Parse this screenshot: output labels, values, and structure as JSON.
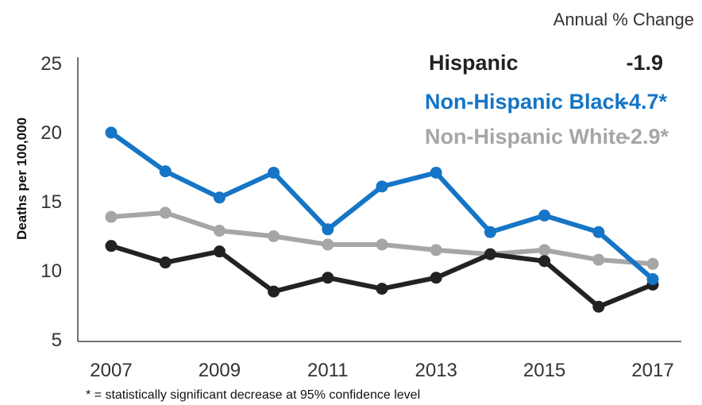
{
  "chart_data": {
    "type": "line",
    "x": [
      2007,
      2008,
      2009,
      2010,
      2011,
      2012,
      2013,
      2014,
      2015,
      2016,
      2017
    ],
    "x_tick_labels": [
      "2007",
      "2009",
      "2011",
      "2013",
      "2015",
      "2017"
    ],
    "y_ticks": [
      "5",
      "10",
      "15",
      "20",
      "25"
    ],
    "ylim": [
      5,
      25
    ],
    "ylabel": "Deaths per 100,000",
    "grid": false,
    "legend_header": "Annual % Change",
    "legend_position": "top-right",
    "series": [
      {
        "name": "Hispanic",
        "change": "-1.9",
        "color": "#222222",
        "values": [
          11.8,
          10.6,
          11.4,
          8.5,
          9.5,
          8.7,
          9.5,
          11.2,
          10.7,
          7.4,
          9.0
        ]
      },
      {
        "name": "Non-Hispanic Black",
        "change": "-4.7*",
        "color": "#1575c6",
        "values": [
          20.0,
          17.2,
          15.3,
          17.1,
          13.0,
          16.1,
          17.1,
          12.8,
          14.0,
          12.8,
          9.4
        ]
      },
      {
        "name": "Non-Hispanic White",
        "change": "-2.9*",
        "color": "#a6a6a6",
        "values": [
          13.9,
          14.2,
          12.9,
          12.5,
          11.9,
          11.9,
          11.5,
          11.2,
          11.5,
          10.8,
          10.5
        ]
      }
    ],
    "footnote": "* = statistically significant decrease at 95% confidence level"
  }
}
